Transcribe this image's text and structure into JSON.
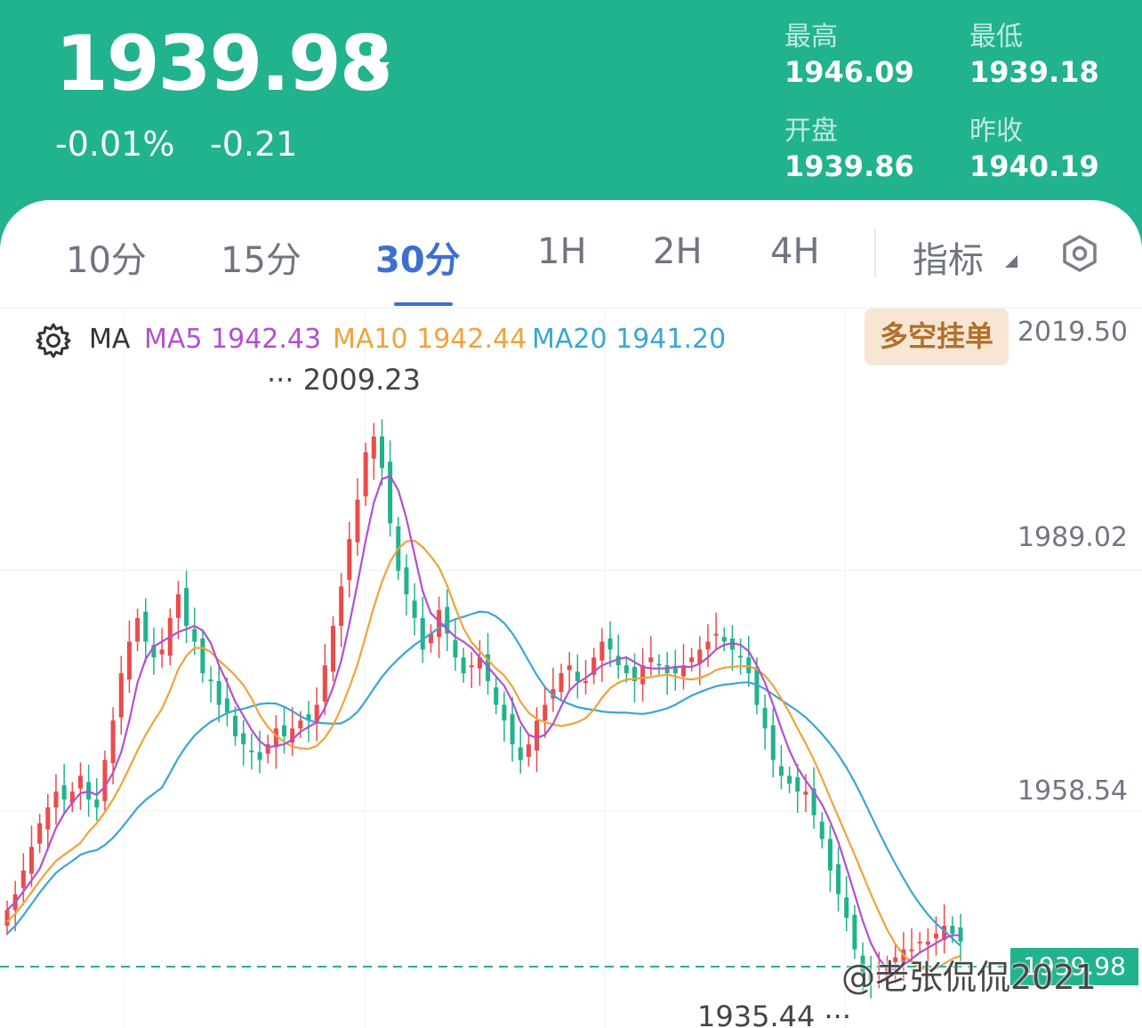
{
  "header": {
    "price": "1939.98",
    "change_pct": "-0.01%",
    "change_abs": "-0.21",
    "high_label": "最高",
    "high_value": "1946.09",
    "low_label": "最低",
    "low_value": "1939.18",
    "open_label": "开盘",
    "open_value": "1939.86",
    "prev_close_label": "昨收",
    "prev_close_value": "1940.19",
    "bg_color": "#21b28e"
  },
  "tabs": [
    {
      "label": "10分"
    },
    {
      "label": "15分"
    },
    {
      "label": "30分",
      "active": true
    },
    {
      "label": "1H"
    },
    {
      "label": "2H"
    },
    {
      "label": "4H"
    }
  ],
  "indicator_label": "指标",
  "legend": {
    "ma": "MA",
    "ma5": "MA5 1942.43",
    "ma10": "MA10 1942.44",
    "ma20": "MA20 1941.20"
  },
  "order_button": "多空挂单",
  "yaxis": [
    "2019.50",
    "1989.02",
    "1958.54"
  ],
  "annotations": {
    "high": "2009.23",
    "low": "1935.44"
  },
  "current_price_tag": "1939.98",
  "watermark": "@老张侃侃2021",
  "chart_data": {
    "type": "candlestick",
    "ylim": [
      1935.44,
      2019.5
    ],
    "colors": {
      "up": "#ec4b4b",
      "down": "#21b28e",
      "ma5": "#b34fd0",
      "ma10": "#f0a33a",
      "ma20": "#3aa6d4"
    },
    "close": [
      1946,
      1948,
      1951,
      1954,
      1957,
      1959,
      1961,
      1960,
      1961,
      1963,
      1960,
      1959,
      1965,
      1970,
      1976,
      1980,
      1983,
      1980,
      1978,
      1979,
      1983,
      1986,
      1982,
      1980,
      1976,
      1975,
      1972,
      1971,
      1968,
      1967,
      1966,
      1965,
      1967,
      1969,
      1968,
      1969,
      1970,
      1970,
      1972,
      1977,
      1982,
      1987,
      1993,
      1998,
      2004,
      2006,
      2002,
      1995,
      1989,
      1986,
      1983,
      1979,
      1981,
      1984,
      1981,
      1978,
      1976,
      1977,
      1978,
      1975,
      1972,
      1970,
      1967,
      1965,
      1967,
      1970,
      1972,
      1974,
      1976,
      1977,
      1975,
      1975,
      1978,
      1980,
      1979,
      1977,
      1976,
      1975,
      1977,
      1978,
      1977,
      1976,
      1976,
      1977,
      1978,
      1979,
      1980,
      1981,
      1980,
      1979,
      1978,
      1976,
      1972,
      1969,
      1965,
      1963,
      1962,
      1961,
      1961,
      1958,
      1955,
      1951,
      1948,
      1945,
      1941,
      1938,
      1937,
      1938,
      1939,
      1940,
      1941,
      1941,
      1942,
      1942,
      1943,
      1944,
      1943,
      1942
    ],
    "ma5_last": 1942.43,
    "ma10_last": 1942.44,
    "ma20_last": 1941.2,
    "high_marker": 2009.23,
    "low_marker": 1935.44
  }
}
